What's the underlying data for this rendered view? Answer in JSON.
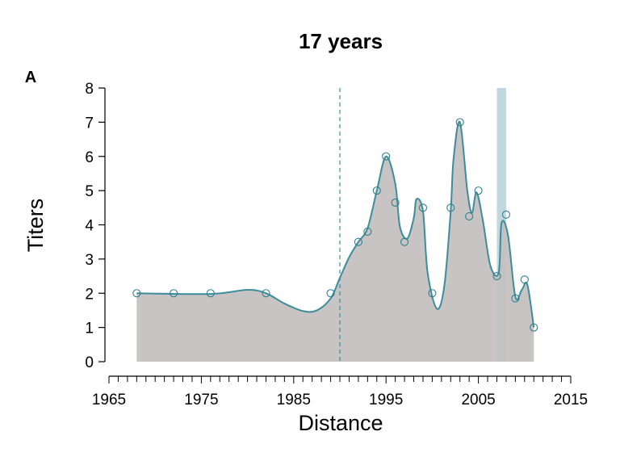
{
  "chart_data": {
    "type": "area",
    "title": "17 years",
    "panel_label": "A",
    "xlabel": "Distance",
    "ylabel": "Titers",
    "xlim": [
      1965,
      2015
    ],
    "ylim": [
      0,
      8
    ],
    "x_ticks": [
      1965,
      1975,
      1985,
      1995,
      2005,
      2015
    ],
    "y_ticks": [
      0,
      1,
      2,
      3,
      4,
      5,
      6,
      7,
      8
    ],
    "grid": false,
    "legend": "none",
    "points": [
      {
        "x": 1968,
        "y": 2.0
      },
      {
        "x": 1972,
        "y": 2.0
      },
      {
        "x": 1976,
        "y": 2.0
      },
      {
        "x": 1982,
        "y": 2.0
      },
      {
        "x": 1989,
        "y": 2.0
      },
      {
        "x": 1992,
        "y": 3.5
      },
      {
        "x": 1993,
        "y": 3.8
      },
      {
        "x": 1994,
        "y": 5.0
      },
      {
        "x": 1995,
        "y": 6.0
      },
      {
        "x": 1996,
        "y": 4.65
      },
      {
        "x": 1997,
        "y": 3.5
      },
      {
        "x": 1999,
        "y": 4.5
      },
      {
        "x": 2000,
        "y": 2.0
      },
      {
        "x": 2002,
        "y": 4.5
      },
      {
        "x": 2003,
        "y": 7.0
      },
      {
        "x": 2004,
        "y": 4.25
      },
      {
        "x": 2005,
        "y": 5.0
      },
      {
        "x": 2007,
        "y": 2.5
      },
      {
        "x": 2008,
        "y": 4.3
      },
      {
        "x": 2009,
        "y": 1.85
      },
      {
        "x": 2010,
        "y": 2.4
      },
      {
        "x": 2011,
        "y": 1.0
      }
    ],
    "smoothed_curve": [
      {
        "x": 1968,
        "y": 2.0
      },
      {
        "x": 1976,
        "y": 1.98
      },
      {
        "x": 1980,
        "y": 2.1
      },
      {
        "x": 1982,
        "y": 2.0
      },
      {
        "x": 1984,
        "y": 1.7
      },
      {
        "x": 1986,
        "y": 1.48
      },
      {
        "x": 1987.5,
        "y": 1.5
      },
      {
        "x": 1989,
        "y": 1.85
      },
      {
        "x": 1990,
        "y": 2.45
      },
      {
        "x": 1991,
        "y": 3.05
      },
      {
        "x": 1992,
        "y": 3.5
      },
      {
        "x": 1993,
        "y": 3.9
      },
      {
        "x": 1994,
        "y": 5.0
      },
      {
        "x": 1995,
        "y": 6.0
      },
      {
        "x": 1996,
        "y": 5.2
      },
      {
        "x": 1996.5,
        "y": 3.95
      },
      {
        "x": 1997.3,
        "y": 3.6
      },
      {
        "x": 1998,
        "y": 4.2
      },
      {
        "x": 1998.3,
        "y": 4.75
      },
      {
        "x": 1999,
        "y": 4.4
      },
      {
        "x": 1999.5,
        "y": 2.6
      },
      {
        "x": 2000.5,
        "y": 1.55
      },
      {
        "x": 2001.3,
        "y": 2.2
      },
      {
        "x": 2002,
        "y": 4.4
      },
      {
        "x": 2002.3,
        "y": 5.9
      },
      {
        "x": 2003,
        "y": 7.0
      },
      {
        "x": 2003.8,
        "y": 5.0
      },
      {
        "x": 2004.3,
        "y": 4.35
      },
      {
        "x": 2004.8,
        "y": 4.95
      },
      {
        "x": 2005.5,
        "y": 4.1
      },
      {
        "x": 2006.3,
        "y": 2.8
      },
      {
        "x": 2007.2,
        "y": 2.6
      },
      {
        "x": 2007.5,
        "y": 4.05
      },
      {
        "x": 2008.2,
        "y": 3.7
      },
      {
        "x": 2009,
        "y": 1.9
      },
      {
        "x": 2009.7,
        "y": 2.1
      },
      {
        "x": 2010.3,
        "y": 2.25
      },
      {
        "x": 2011,
        "y": 1.0
      }
    ],
    "reference_line_x": 1990,
    "highlight_band_x": [
      2007,
      2008
    ],
    "colors": {
      "area_fill": "#c3bfbf",
      "curve": "#3d8c9c",
      "points": "#2f7f90",
      "reference_line": "#3d8c9c",
      "highlight_band": "#c2d6de",
      "axis": "#000000"
    }
  }
}
